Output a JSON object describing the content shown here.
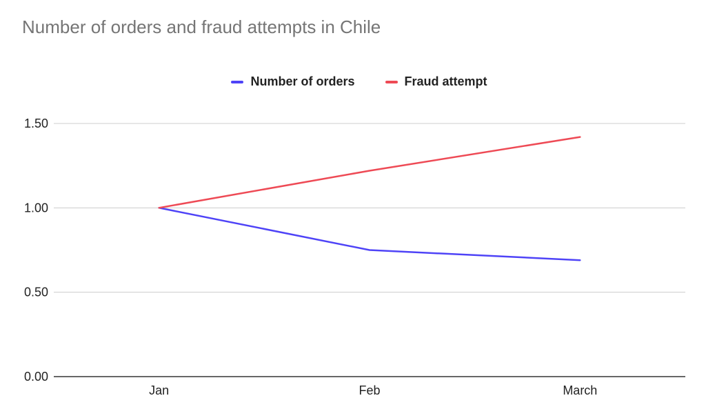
{
  "chart_data": {
    "type": "line",
    "title": "Number of orders and fraud attempts in Chile",
    "xlabel": "",
    "ylabel": "",
    "categories": [
      "Jan",
      "Feb",
      "March"
    ],
    "series": [
      {
        "name": "Number of orders",
        "color": "#4e43f7",
        "values": [
          1.0,
          0.75,
          0.69
        ]
      },
      {
        "name": "Fraud attempt",
        "color": "#ee4a55",
        "values": [
          1.0,
          1.22,
          1.42
        ]
      }
    ],
    "ylim": [
      0,
      1.5
    ],
    "yticks": [
      "0.00",
      "0.50",
      "1.00",
      "1.50"
    ],
    "grid": true,
    "legend_position": "top"
  }
}
